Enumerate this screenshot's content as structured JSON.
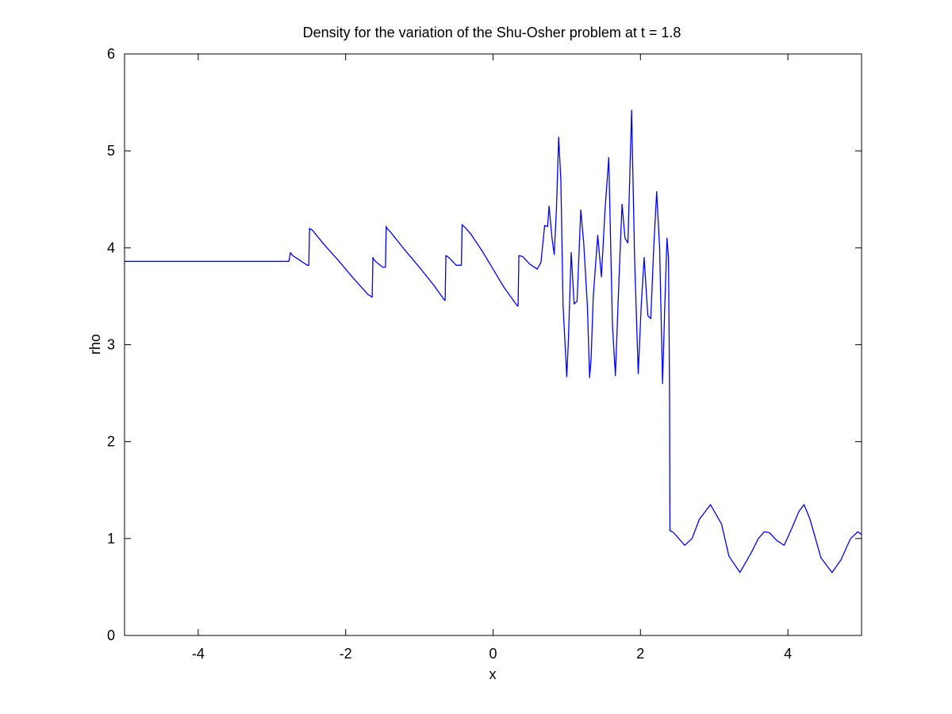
{
  "chart_data": {
    "type": "line",
    "title": "Density for the variation of the Shu-Osher problem at t = 1.8",
    "xlabel": "x",
    "ylabel": "rho",
    "xlim": [
      -5,
      5
    ],
    "ylim": [
      0,
      6
    ],
    "xticks": [
      -4,
      -2,
      0,
      2,
      4
    ],
    "xtick_labels": [
      "-4",
      "-2",
      "0",
      "2",
      "4"
    ],
    "yticks": [
      0,
      1,
      2,
      3,
      4,
      5,
      6
    ],
    "ytick_labels": [
      "0",
      "1",
      "2",
      "3",
      "4",
      "5",
      "6"
    ],
    "grid": false,
    "legend": "none",
    "line_color": "#0000ff",
    "series": [
      {
        "x": [
          -5.0,
          -4.0,
          -3.0,
          -2.77,
          -2.75,
          -2.72,
          -2.68,
          -2.6,
          -2.52,
          -2.5,
          -2.49,
          -2.45,
          -2.3,
          -2.1,
          -1.9,
          -1.7,
          -1.64,
          -1.63,
          -1.62,
          -1.58,
          -1.5,
          -1.46,
          -1.45,
          -1.44,
          -1.4,
          -1.2,
          -1.0,
          -0.8,
          -0.66,
          -0.65,
          -0.64,
          -0.6,
          -0.5,
          -0.43,
          -0.42,
          -0.41,
          -0.38,
          -0.3,
          -0.15,
          0.0,
          0.15,
          0.33,
          0.34,
          0.35,
          0.4,
          0.5,
          0.6,
          0.65,
          0.7,
          0.74,
          0.76,
          0.8,
          0.83,
          0.86,
          0.89,
          0.92,
          0.95,
          1.0,
          1.02,
          1.06,
          1.1,
          1.14,
          1.19,
          1.23,
          1.28,
          1.31,
          1.33,
          1.36,
          1.42,
          1.47,
          1.52,
          1.57,
          1.62,
          1.66,
          1.71,
          1.75,
          1.79,
          1.83,
          1.88,
          1.92,
          1.97,
          2.01,
          2.05,
          2.1,
          2.14,
          2.18,
          2.22,
          2.26,
          2.3,
          2.33,
          2.36,
          2.38,
          2.39,
          2.395,
          2.4,
          2.41,
          2.45,
          2.52,
          2.6,
          2.7,
          2.8,
          2.95,
          3.1,
          3.2,
          3.35,
          3.5,
          3.6,
          3.68,
          3.75,
          3.85,
          3.95,
          4.05,
          4.15,
          4.22,
          4.3,
          4.45,
          4.6,
          4.72,
          4.85,
          4.95,
          5.0
        ],
        "y": [
          3.86,
          3.86,
          3.86,
          3.86,
          3.95,
          3.92,
          3.9,
          3.86,
          3.82,
          3.82,
          4.2,
          4.18,
          4.04,
          3.87,
          3.69,
          3.52,
          3.49,
          3.9,
          3.88,
          3.85,
          3.8,
          3.8,
          4.22,
          4.2,
          4.17,
          3.98,
          3.8,
          3.61,
          3.46,
          3.46,
          3.92,
          3.9,
          3.82,
          3.82,
          4.24,
          4.23,
          4.21,
          4.14,
          3.97,
          3.78,
          3.59,
          3.4,
          3.4,
          3.92,
          3.91,
          3.83,
          3.78,
          3.85,
          4.23,
          4.22,
          4.43,
          4.1,
          3.93,
          4.4,
          5.14,
          4.7,
          3.4,
          2.67,
          3.0,
          3.95,
          3.42,
          3.45,
          4.39,
          4.05,
          3.4,
          2.66,
          2.85,
          3.5,
          4.13,
          3.7,
          4.4,
          4.93,
          3.2,
          2.68,
          3.7,
          4.45,
          4.1,
          4.05,
          5.42,
          3.9,
          2.7,
          3.4,
          3.9,
          3.3,
          3.27,
          4.0,
          4.58,
          4.0,
          2.6,
          3.4,
          4.1,
          3.9,
          3.0,
          2.4,
          1.08,
          1.08,
          1.06,
          1.0,
          0.93,
          1.0,
          1.2,
          1.35,
          1.15,
          0.82,
          0.65,
          0.85,
          1.0,
          1.07,
          1.06,
          0.98,
          0.93,
          1.1,
          1.28,
          1.35,
          1.2,
          0.8,
          0.65,
          0.78,
          1.0,
          1.07,
          1.04
        ]
      }
    ]
  }
}
